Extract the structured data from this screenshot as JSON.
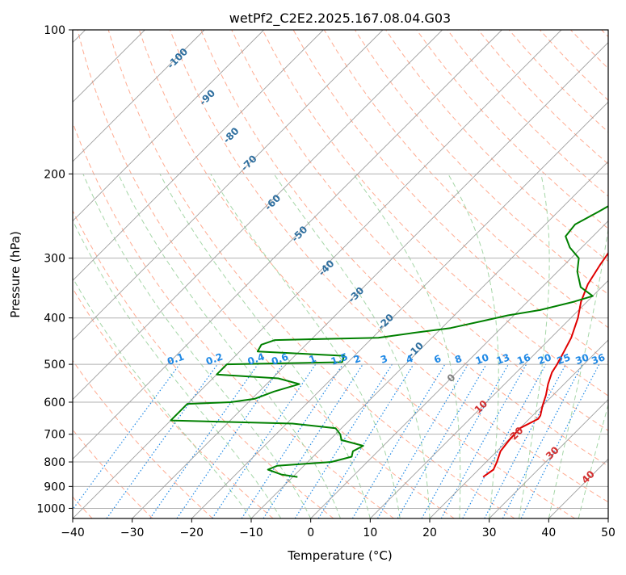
{
  "chart_data": {
    "type": "line",
    "title": "wetPf2_C2E2.2025.167.08.04.G03",
    "xlabel": "Temperature (°C)",
    "ylabel": "Pressure (hPa)",
    "xlim": [
      -40,
      50
    ],
    "ylim": [
      1050,
      100
    ],
    "y_scale": "log",
    "grid": true,
    "x_ticks": [
      -40,
      -30,
      -20,
      -10,
      0,
      10,
      20,
      30,
      40,
      50
    ],
    "x_tick_labels": [
      "−40",
      "−30",
      "−20",
      "−10",
      "0",
      "10",
      "20",
      "30",
      "40",
      "50"
    ],
    "y_ticks": [
      100,
      200,
      300,
      400,
      500,
      600,
      700,
      800,
      900,
      1000
    ],
    "y_tick_labels": [
      "100",
      "200",
      "300",
      "400",
      "500",
      "600",
      "700",
      "800",
      "900",
      "1000"
    ],
    "skew_background": {
      "isotherm_spacing_c": 10,
      "dry_adiabat_labels": [
        {
          "text": "-100",
          "x": -22,
          "y": 116
        },
        {
          "text": "-90",
          "x": -17,
          "y": 140
        },
        {
          "text": "-80",
          "x": -13,
          "y": 168
        },
        {
          "text": "-70",
          "x": -10,
          "y": 192
        },
        {
          "text": "-60",
          "x": -6,
          "y": 232
        },
        {
          "text": "-50",
          "x": -1.5,
          "y": 270
        },
        {
          "text": "-40",
          "x": 3,
          "y": 318
        },
        {
          "text": "-30",
          "x": 8,
          "y": 362
        },
        {
          "text": "-20",
          "x": 13,
          "y": 412
        },
        {
          "text": "-10",
          "x": 18,
          "y": 472
        }
      ],
      "mixing_ratio_labels": [
        "0.1",
        "0.2",
        "0.4",
        "0.6",
        "1",
        "1.5",
        "2",
        "3",
        "4",
        "6",
        "8",
        "10",
        "13",
        "16",
        "20",
        "25",
        "30",
        "36"
      ],
      "mixing_ratio_label_x": [
        -22.5,
        -16,
        -9,
        -5,
        0.5,
        5,
        8,
        12.5,
        16.8,
        21.5,
        25,
        29,
        32.5,
        36,
        39.5,
        42.7,
        45.8,
        48.5
      ],
      "mixing_ratio_label_y": 495,
      "moist_adiabat_labels": [
        {
          "text": "0",
          "x": 24,
          "y": 540,
          "color": "#808080"
        },
        {
          "text": "10",
          "x": 29,
          "y": 620,
          "color": "#d32f2f"
        },
        {
          "text": "20",
          "x": 35,
          "y": 705,
          "color": "#d32f2f"
        },
        {
          "text": "30",
          "x": 41,
          "y": 775,
          "color": "#d32f2f"
        },
        {
          "text": "40",
          "x": 47,
          "y": 870,
          "color": "#d32f2f"
        }
      ],
      "colors": {
        "isotherm": "#9e9e9e",
        "isobar": "#b0b0b0",
        "dry_adiabat": "#ffab91",
        "moist_adiabat": "#a5d6a7",
        "mixing_ratio": "#1e88e5",
        "outer_arc": "#d7c4a8"
      }
    },
    "series": [
      {
        "color": "#e00000",
        "values": [
          {
            "p": 860,
            "t": 22.0
          },
          {
            "p": 830,
            "t": 22.5
          },
          {
            "p": 800,
            "t": 21.8
          },
          {
            "p": 760,
            "t": 20.6
          },
          {
            "p": 720,
            "t": 20.2
          },
          {
            "p": 680,
            "t": 20.0
          },
          {
            "p": 650,
            "t": 21.5
          },
          {
            "p": 640,
            "t": 21.3
          },
          {
            "p": 610,
            "t": 20.0
          },
          {
            "p": 580,
            "t": 18.8
          },
          {
            "p": 550,
            "t": 17.3
          },
          {
            "p": 520,
            "t": 16.0
          },
          {
            "p": 500,
            "t": 15.5
          },
          {
            "p": 470,
            "t": 14.5
          },
          {
            "p": 440,
            "t": 13.4
          },
          {
            "p": 400,
            "t": 11.2
          },
          {
            "p": 370,
            "t": 9.0
          },
          {
            "p": 340,
            "t": 7.2
          },
          {
            "p": 310,
            "t": 6.0
          },
          {
            "p": 290,
            "t": 5.3
          },
          {
            "p": 270,
            "t": 5.4
          },
          {
            "p": 250,
            "t": 5.0
          },
          {
            "p": 235,
            "t": 3.8
          },
          {
            "p": 220,
            "t": 2.0
          },
          {
            "p": 205,
            "t": 1.0
          },
          {
            "p": 190,
            "t": 1.3
          },
          {
            "p": 170,
            "t": 2.6
          },
          {
            "p": 155,
            "t": 2.8
          },
          {
            "p": 140,
            "t": 3.3
          },
          {
            "p": 130,
            "t": 4.5
          },
          {
            "p": 120,
            "t": 7.5
          },
          {
            "p": 110,
            "t": 10.0
          },
          {
            "p": 100,
            "t": 14.7
          }
        ]
      },
      {
        "color": "#008000",
        "values": [
          {
            "p": 860,
            "t": -9.2
          },
          {
            "p": 850,
            "t": -12.3
          },
          {
            "p": 830,
            "t": -15.4
          },
          {
            "p": 815,
            "t": -14.5
          },
          {
            "p": 800,
            "t": -6.0
          },
          {
            "p": 780,
            "t": -3.5
          },
          {
            "p": 760,
            "t": -4.2
          },
          {
            "p": 740,
            "t": -3.4
          },
          {
            "p": 720,
            "t": -8.0
          },
          {
            "p": 700,
            "t": -9.2
          },
          {
            "p": 680,
            "t": -11.0
          },
          {
            "p": 665,
            "t": -19.0
          },
          {
            "p": 655,
            "t": -40.0
          },
          {
            "p": 605,
            "t": -40.0
          },
          {
            "p": 600,
            "t": -33.0
          },
          {
            "p": 590,
            "t": -29.5
          },
          {
            "p": 570,
            "t": -27.5
          },
          {
            "p": 550,
            "t": -24.5
          },
          {
            "p": 535,
            "t": -29.0
          },
          {
            "p": 525,
            "t": -40.0
          },
          {
            "p": 500,
            "t": -40.0
          },
          {
            "p": 495,
            "t": -21.0
          },
          {
            "p": 480,
            "t": -21.7
          },
          {
            "p": 470,
            "t": -37.0
          },
          {
            "p": 455,
            "t": -37.5
          },
          {
            "p": 445,
            "t": -36.0
          },
          {
            "p": 440,
            "t": -19.0
          },
          {
            "p": 430,
            "t": -14.0
          },
          {
            "p": 420,
            "t": -8.5
          },
          {
            "p": 405,
            "t": -4.0
          },
          {
            "p": 395,
            "t": -1.0
          },
          {
            "p": 385,
            "t": 3.5
          },
          {
            "p": 370,
            "t": 7.8
          },
          {
            "p": 360,
            "t": 10.0
          },
          {
            "p": 345,
            "t": 6.5
          },
          {
            "p": 320,
            "t": 3.3
          },
          {
            "p": 300,
            "t": 1.3
          },
          {
            "p": 285,
            "t": -2.0
          },
          {
            "p": 270,
            "t": -4.6
          },
          {
            "p": 255,
            "t": -5.0
          },
          {
            "p": 240,
            "t": -3.2
          },
          {
            "p": 225,
            "t": -1.5
          },
          {
            "p": 210,
            "t": -0.3
          },
          {
            "p": 200,
            "t": -1.5
          },
          {
            "p": 190,
            "t": -5.5
          },
          {
            "p": 180,
            "t": -6.2
          },
          {
            "p": 170,
            "t": -5.2
          },
          {
            "p": 155,
            "t": -5.1
          },
          {
            "p": 140,
            "t": -4.2
          },
          {
            "p": 125,
            "t": -2.6
          },
          {
            "p": 115,
            "t": -1.2
          },
          {
            "p": 105,
            "t": 0.6
          },
          {
            "p": 100,
            "t": 1.2
          }
        ]
      }
    ]
  }
}
